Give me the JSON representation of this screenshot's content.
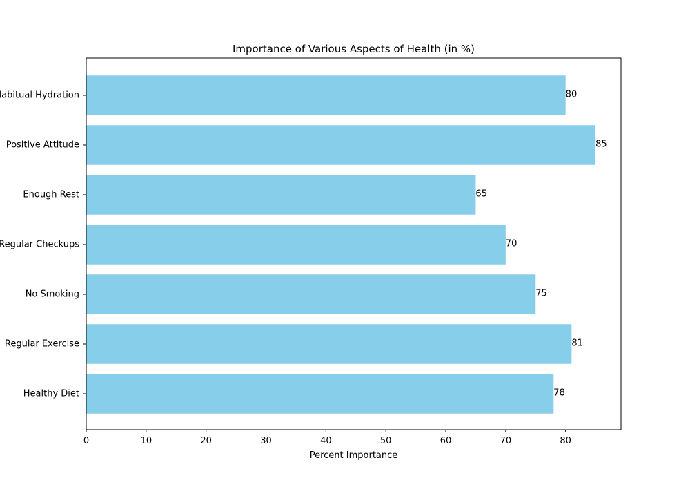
{
  "chart_data": {
    "type": "bar",
    "orientation": "horizontal",
    "title": "Importance of Various Aspects of Health (in %)",
    "xlabel": "Percent Importance",
    "ylabel": "",
    "categories": [
      "Healthy Diet",
      "Regular Exercise",
      "No Smoking",
      "Regular Checkups",
      "Enough Rest",
      "Positive Attitude",
      "Habitual Hydration"
    ],
    "values": [
      78,
      81,
      75,
      70,
      65,
      85,
      80
    ],
    "value_labels": [
      "78",
      "81",
      "75",
      "70",
      "65",
      "85",
      "80"
    ],
    "xlim": [
      0,
      89.25
    ],
    "xticks": [
      0,
      10,
      20,
      30,
      40,
      50,
      60,
      70,
      80
    ],
    "xtick_labels": [
      "0",
      "10",
      "20",
      "30",
      "40",
      "50",
      "60",
      "70",
      "80"
    ],
    "grid": false,
    "bar_color": "#87ceeb"
  }
}
